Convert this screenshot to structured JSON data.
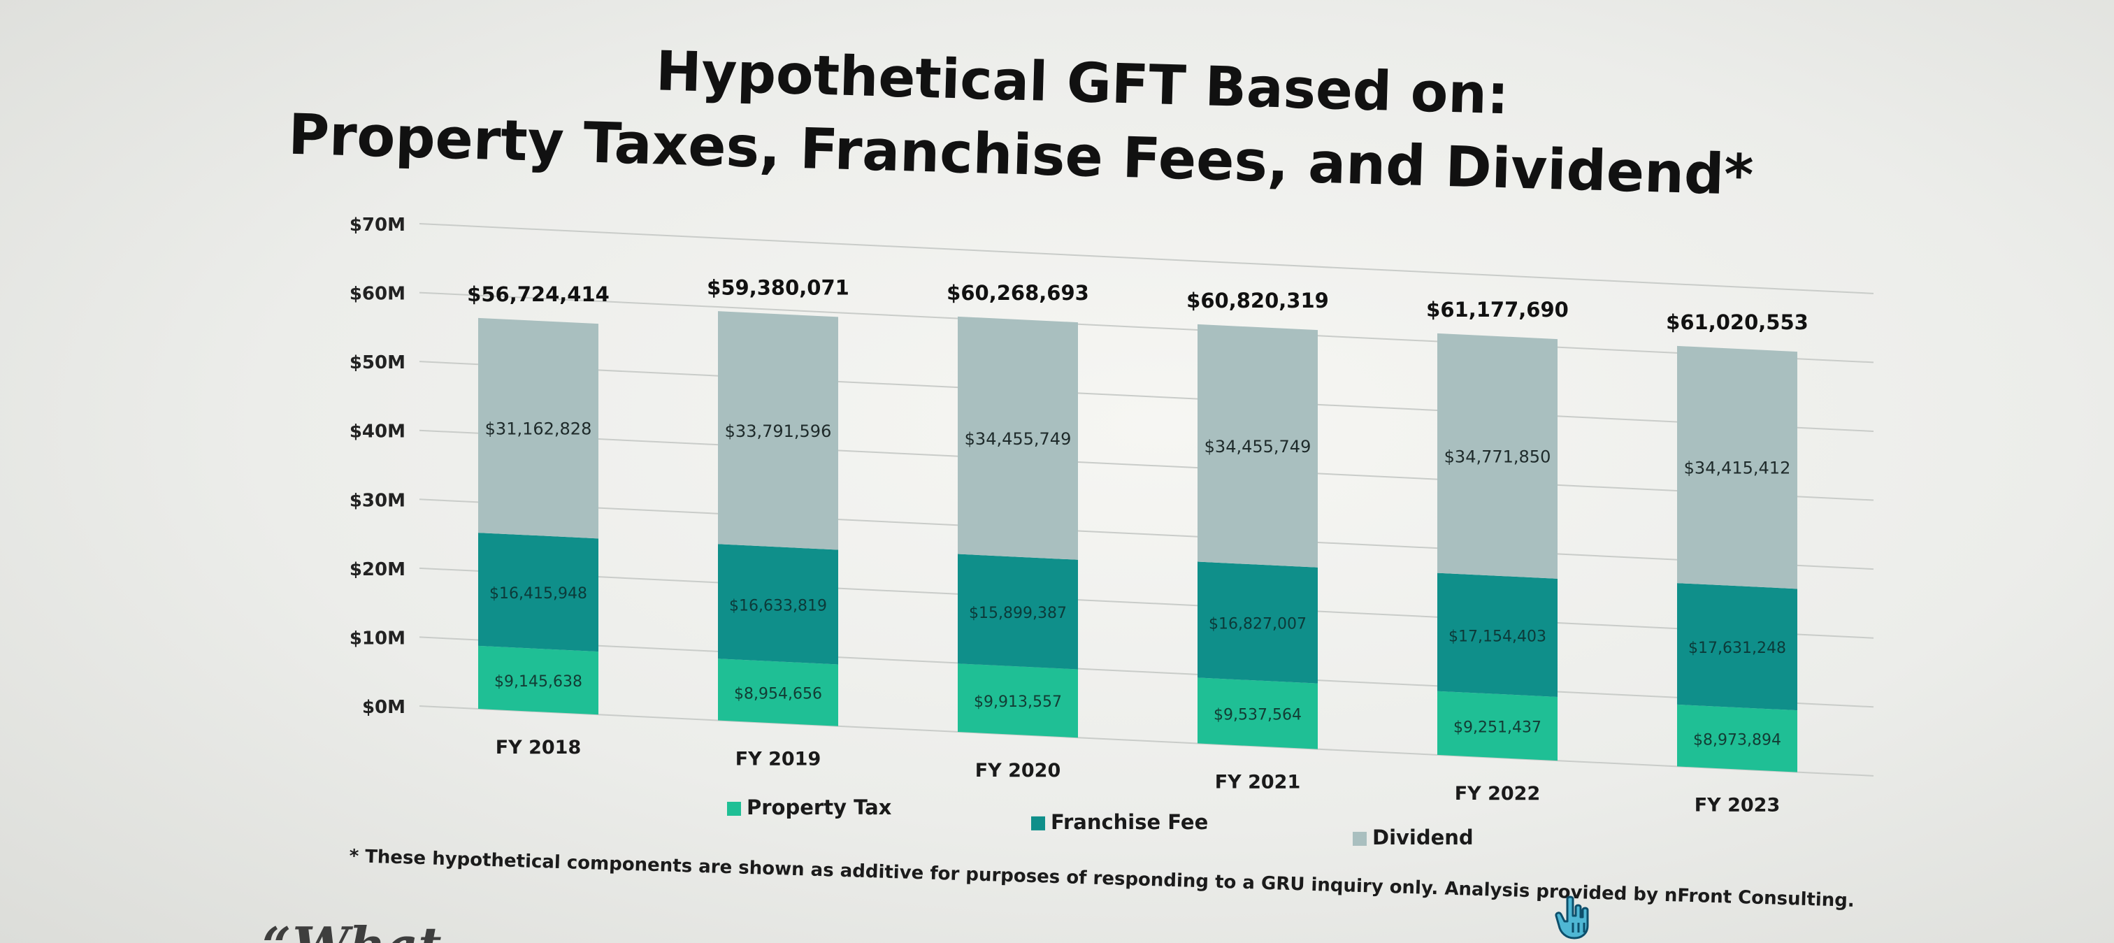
{
  "title_line1": "Hypothetical GFT Based on:",
  "title_line2": "Property Taxes, Franchise Fees, and Dividend*",
  "footnote": "* These hypothetical components are shown as additive for purposes of responding to a GRU inquiry only. Analysis provided by nFront Consulting.",
  "quote_fragment": "“What",
  "colors": {
    "property_tax": "#1fbf95",
    "franchise_fee": "#0f8f8a",
    "dividend": "#a9bfbf",
    "gridline": "#c9ccc9"
  },
  "chart_data": {
    "type": "bar",
    "stacked": true,
    "categories": [
      "FY 2018",
      "FY 2019",
      "FY 2020",
      "FY 2021",
      "FY 2022",
      "FY 2023"
    ],
    "series": [
      {
        "name": "Property Tax",
        "values": [
          9145638,
          8954656,
          9913557,
          9537564,
          9251437,
          8973894
        ],
        "labels": [
          "$9,145,638",
          "$8,954,656",
          "$9,913,557",
          "$9,537,564",
          "$9,251,437",
          "$8,973,894"
        ]
      },
      {
        "name": "Franchise Fee",
        "values": [
          16415948,
          16633819,
          15899387,
          16827007,
          17154403,
          17631248
        ],
        "labels": [
          "$16,415,948",
          "$16,633,819",
          "$15,899,387",
          "$16,827,007",
          "$17,154,403",
          "$17,631,248"
        ]
      },
      {
        "name": "Dividend",
        "values": [
          31162828,
          33791596,
          34455749,
          34455749,
          34771850,
          34415412
        ],
        "labels": [
          "$31,162,828",
          "$33,791,596",
          "$34,455,749",
          "$34,455,749",
          "$34,771,850",
          "$34,415,412"
        ]
      }
    ],
    "totals": [
      "$56,724,414",
      "$59,380,071",
      "$60,268,693",
      "$60,820,319",
      "$61,177,690",
      "$61,020,553"
    ],
    "y_ticks": [
      "$0M",
      "$10M",
      "$20M",
      "$30M",
      "$40M",
      "$50M",
      "$60M",
      "$70M"
    ],
    "ylim": [
      0,
      70000000
    ],
    "grid": true,
    "legend_position": "bottom"
  }
}
